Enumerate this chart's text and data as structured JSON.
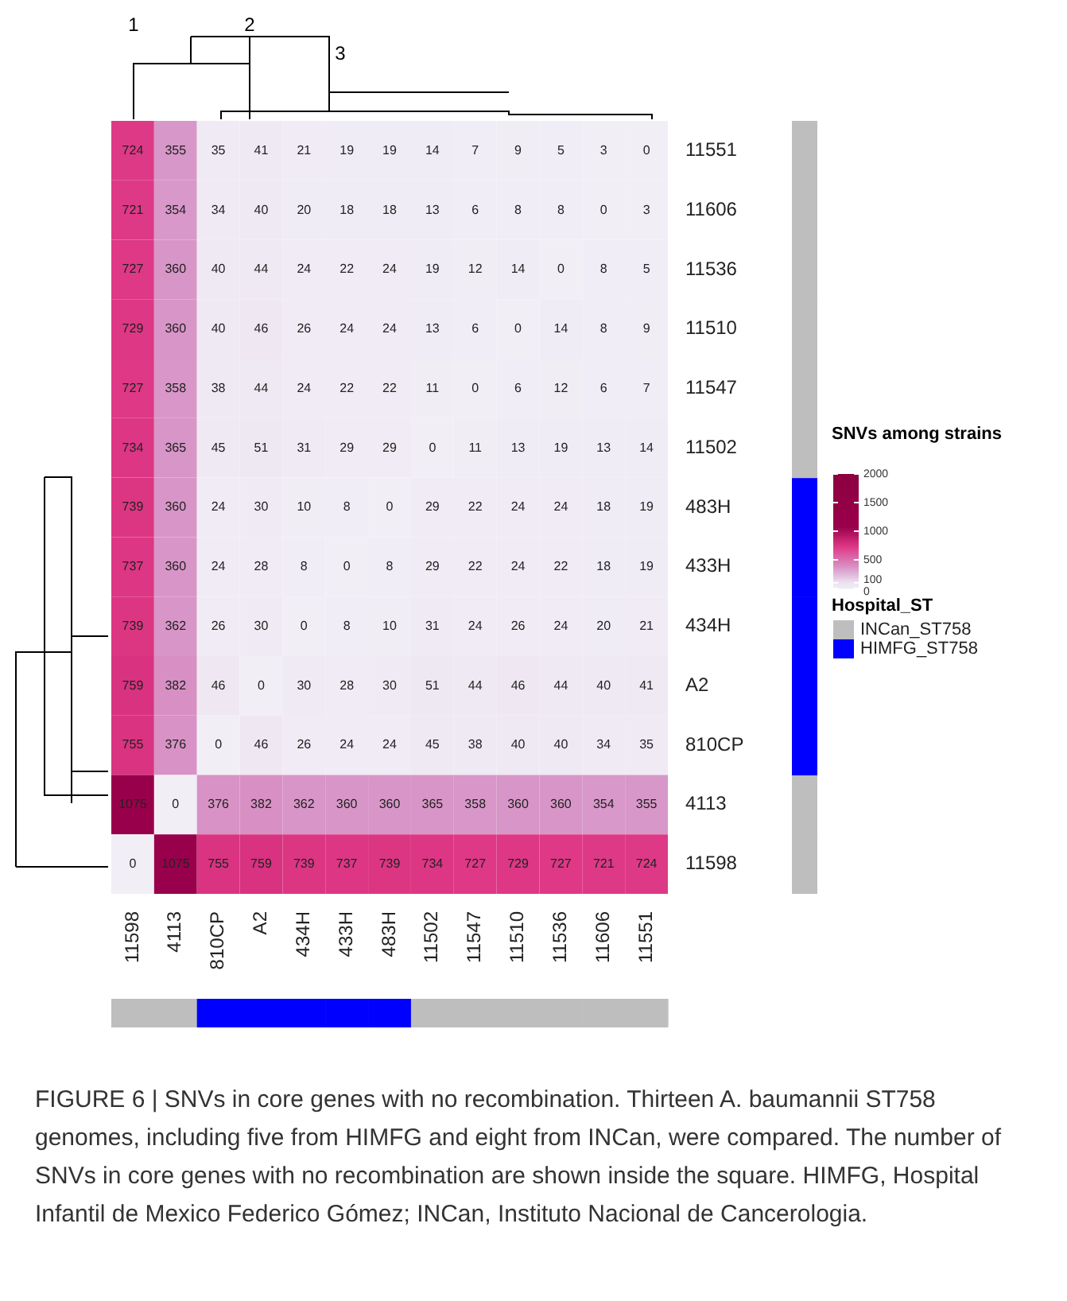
{
  "chart_data": {
    "type": "heatmap",
    "categories": [
      "11598",
      "4113",
      "810CP",
      "A2",
      "434H",
      "433H",
      "483H",
      "11502",
      "11547",
      "11510",
      "11536",
      "11606",
      "11551"
    ],
    "y_categories": [
      "11551",
      "11606",
      "11536",
      "11510",
      "11547",
      "11502",
      "483H",
      "433H",
      "434H",
      "A2",
      "810CP",
      "4113",
      "11598"
    ],
    "cells": [
      [
        724,
        355,
        35,
        41,
        21,
        19,
        19,
        14,
        7,
        9,
        5,
        3,
        0
      ],
      [
        721,
        354,
        34,
        40,
        20,
        18,
        18,
        13,
        6,
        8,
        8,
        0,
        3
      ],
      [
        727,
        360,
        40,
        44,
        24,
        22,
        24,
        19,
        12,
        14,
        0,
        8,
        5
      ],
      [
        729,
        360,
        40,
        46,
        26,
        24,
        24,
        13,
        6,
        0,
        14,
        8,
        9
      ],
      [
        727,
        358,
        38,
        44,
        24,
        22,
        22,
        11,
        0,
        6,
        12,
        6,
        7
      ],
      [
        734,
        365,
        45,
        51,
        31,
        29,
        29,
        0,
        11,
        13,
        19,
        13,
        14
      ],
      [
        739,
        360,
        24,
        30,
        10,
        8,
        0,
        29,
        22,
        24,
        24,
        18,
        19
      ],
      [
        737,
        360,
        24,
        28,
        8,
        0,
        8,
        29,
        22,
        24,
        22,
        18,
        19
      ],
      [
        739,
        362,
        26,
        30,
        0,
        8,
        10,
        31,
        24,
        26,
        24,
        20,
        21
      ],
      [
        759,
        382,
        46,
        0,
        30,
        28,
        30,
        51,
        44,
        46,
        44,
        40,
        41
      ],
      [
        755,
        376,
        0,
        46,
        26,
        24,
        24,
        45,
        38,
        40,
        40,
        34,
        35
      ],
      [
        1075,
        0,
        376,
        382,
        362,
        360,
        360,
        365,
        358,
        360,
        360,
        354,
        355
      ],
      [
        0,
        1075,
        755,
        759,
        739,
        737,
        739,
        734,
        727,
        729,
        727,
        721,
        724
      ]
    ],
    "data_labels": true,
    "clabel": "SNVs among strains",
    "clim": [
      0,
      2000
    ],
    "cticks": [
      0,
      100,
      500,
      1000,
      1500,
      2000
    ],
    "annotations": [
      "1",
      "2",
      "3",
      "Hospital_ST",
      "INCan_ST758",
      "HIMFG_ST758",
      "FIGURE 6 | SNVs in core genes with no recombination. Thirteen A. baumannii ST758 genomes, including five from HIMFG and eight from INCan, were compared. The number of SNVs in core genes with no recombination are shown inside the square. HIMFG, Hospital Infantil de Mexico Federico Gómez; INCan, Instituto Nacional de Cancerologia."
    ]
  }
}
